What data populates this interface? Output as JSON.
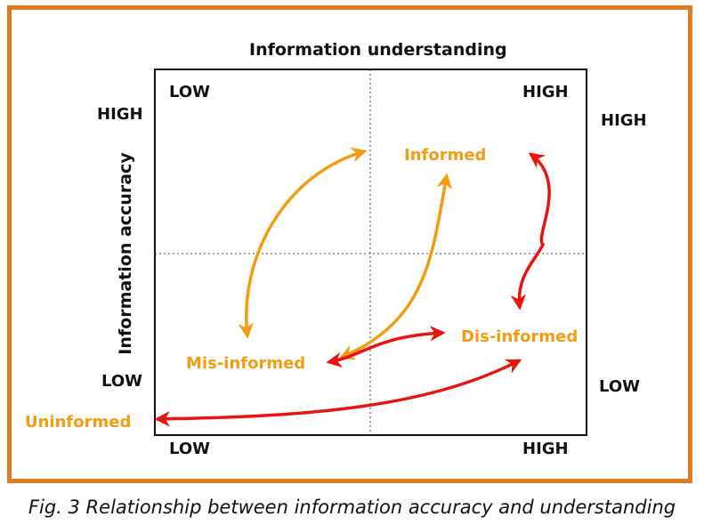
{
  "title": "Information understanding",
  "y_axis_title": "Information accuracy",
  "corners": {
    "top_left": "LOW",
    "top_right": "HIGH",
    "bottom_left": "LOW",
    "bottom_right": "HIGH"
  },
  "side_labels": {
    "left_high": "HIGH",
    "left_low": "LOW",
    "right_high": "HIGH",
    "right_low": "LOW"
  },
  "states": {
    "informed": "Informed",
    "misinformed": "Mis-informed",
    "disinformed": "Dis-informed",
    "uninformed": "Uninformed"
  },
  "colors": {
    "frame": "#e07b1f",
    "orange_arrow": "#f39c12",
    "red_arrow": "#e8140f",
    "state_text": "#f39c12"
  },
  "caption": "Fig. 3 Relationship between information accuracy and understanding"
}
